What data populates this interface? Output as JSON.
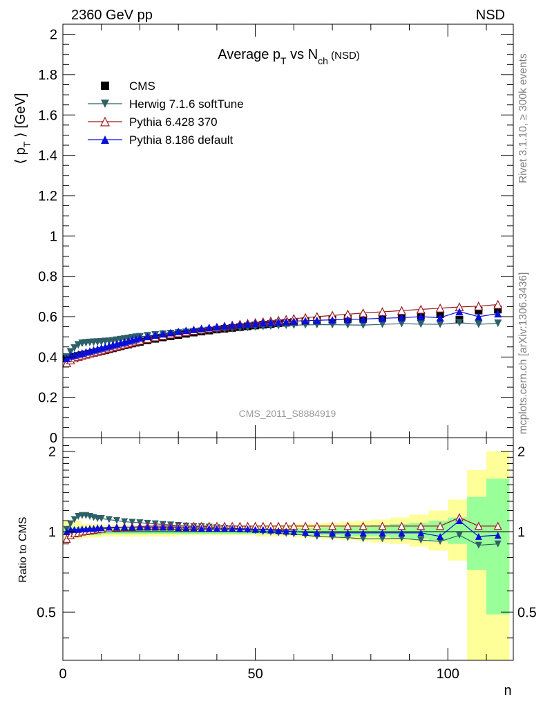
{
  "header": {
    "left": "2360 GeV pp",
    "right": "NSD"
  },
  "side_labels": {
    "rivet": "Rivet 3.1.10, ≥ 300k events",
    "mcplots": "mcplots.cern.ch [arXiv:1306.3436]"
  },
  "chart_data": [
    {
      "type": "scatter",
      "title": {
        "main": "Average p",
        "main_sub": "T",
        "mid": " vs N",
        "mid_sub": "ch",
        "tail": " (NSD)"
      },
      "ylabel": {
        "pre": "⟨ p",
        "sub": "T",
        "post": " ⟩ [GeV]"
      },
      "watermark": "CMS_2011_S8884919",
      "xlim": [
        0,
        117
      ],
      "ylim": [
        0,
        2.05
      ],
      "yticks": [
        {
          "v": 0,
          "label": "0"
        },
        {
          "v": 0.2,
          "label": "0.2"
        },
        {
          "v": 0.4,
          "label": "0.4"
        },
        {
          "v": 0.6,
          "label": "0.6"
        },
        {
          "v": 0.8,
          "label": "0.8"
        },
        {
          "v": 1.0,
          "label": "1"
        },
        {
          "v": 1.2,
          "label": "1.2"
        },
        {
          "v": 1.4,
          "label": "1.4"
        },
        {
          "v": 1.6,
          "label": "1.6"
        },
        {
          "v": 1.8,
          "label": "1.8"
        },
        {
          "v": 2.0,
          "label": "2"
        }
      ],
      "legend_position": "top-left",
      "series": [
        {
          "name": "CMS",
          "color": "#000000",
          "marker": "square",
          "line": false,
          "x": [
            1,
            2,
            3,
            4,
            5,
            6,
            7,
            8,
            9,
            10,
            11,
            12,
            13,
            14,
            15,
            16,
            17,
            18,
            19,
            20,
            22,
            24,
            26,
            28,
            30,
            32,
            34,
            36,
            38,
            40,
            42,
            44,
            46,
            48,
            50,
            52,
            54,
            56,
            58,
            60,
            63,
            66,
            70,
            74,
            78,
            83,
            88,
            93,
            98,
            103,
            108,
            113
          ],
          "y": [
            0.392,
            0.397,
            0.401,
            0.405,
            0.409,
            0.413,
            0.417,
            0.421,
            0.425,
            0.429,
            0.433,
            0.438,
            0.443,
            0.448,
            0.453,
            0.458,
            0.462,
            0.467,
            0.471,
            0.475,
            0.483,
            0.49,
            0.497,
            0.503,
            0.509,
            0.515,
            0.521,
            0.526,
            0.531,
            0.536,
            0.54,
            0.544,
            0.548,
            0.552,
            0.556,
            0.56,
            0.563,
            0.567,
            0.57,
            0.573,
            0.577,
            0.581,
            0.585,
            0.589,
            0.593,
            0.597,
            0.601,
            0.605,
            0.612,
            0.585,
            0.63,
            0.635
          ]
        },
        {
          "name": "Herwig 7.1.6 softTune",
          "color": "#2e6068",
          "marker": "triangle-down",
          "line": true,
          "x": [
            1,
            2,
            3,
            4,
            5,
            6,
            7,
            8,
            9,
            10,
            11,
            12,
            13,
            14,
            15,
            16,
            17,
            18,
            19,
            20,
            22,
            24,
            26,
            28,
            30,
            32,
            34,
            36,
            38,
            40,
            42,
            44,
            46,
            48,
            50,
            52,
            54,
            56,
            58,
            60,
            63,
            66,
            70,
            74,
            78,
            83,
            88,
            93,
            98,
            103,
            108,
            113
          ],
          "y": [
            0.4,
            0.425,
            0.445,
            0.46,
            0.468,
            0.47,
            0.472,
            0.473,
            0.474,
            0.475,
            0.477,
            0.478,
            0.48,
            0.483,
            0.486,
            0.489,
            0.492,
            0.495,
            0.498,
            0.5,
            0.505,
            0.509,
            0.513,
            0.516,
            0.519,
            0.522,
            0.525,
            0.528,
            0.531,
            0.534,
            0.537,
            0.54,
            0.543,
            0.546,
            0.549,
            0.551,
            0.553,
            0.555,
            0.557,
            0.558,
            0.559,
            0.56,
            0.56,
            0.559,
            0.558,
            0.562,
            0.565,
            0.563,
            0.562,
            0.57,
            0.562,
            0.567
          ]
        },
        {
          "name": "Pythia 6.428 370",
          "color": "#9a1c22",
          "marker": "triangle-up-open",
          "line": true,
          "x": [
            1,
            2,
            3,
            4,
            5,
            6,
            7,
            8,
            9,
            10,
            11,
            12,
            13,
            14,
            15,
            16,
            17,
            18,
            19,
            20,
            22,
            24,
            26,
            28,
            30,
            32,
            34,
            36,
            38,
            40,
            42,
            44,
            46,
            48,
            50,
            52,
            54,
            56,
            58,
            60,
            63,
            66,
            70,
            74,
            78,
            83,
            88,
            93,
            98,
            103,
            108,
            113
          ],
          "y": [
            0.37,
            0.385,
            0.395,
            0.402,
            0.408,
            0.413,
            0.418,
            0.423,
            0.428,
            0.433,
            0.438,
            0.443,
            0.448,
            0.453,
            0.458,
            0.463,
            0.468,
            0.473,
            0.478,
            0.483,
            0.491,
            0.499,
            0.506,
            0.513,
            0.519,
            0.525,
            0.531,
            0.537,
            0.542,
            0.547,
            0.552,
            0.557,
            0.562,
            0.566,
            0.57,
            0.574,
            0.578,
            0.582,
            0.586,
            0.59,
            0.595,
            0.6,
            0.606,
            0.612,
            0.618,
            0.624,
            0.63,
            0.636,
            0.642,
            0.648,
            0.652,
            0.66
          ]
        },
        {
          "name": "Pythia 8.186 default",
          "color": "#0a10d8",
          "marker": "triangle-up",
          "line": true,
          "x": [
            1,
            2,
            3,
            4,
            5,
            6,
            7,
            8,
            9,
            10,
            11,
            12,
            13,
            14,
            15,
            16,
            17,
            18,
            19,
            20,
            22,
            24,
            26,
            28,
            30,
            32,
            34,
            36,
            38,
            40,
            42,
            44,
            46,
            48,
            50,
            52,
            54,
            56,
            58,
            60,
            63,
            66,
            70,
            74,
            78,
            83,
            88,
            93,
            98,
            103,
            108,
            113
          ],
          "y": [
            0.393,
            0.405,
            0.41,
            0.415,
            0.42,
            0.425,
            0.43,
            0.435,
            0.44,
            0.445,
            0.45,
            0.455,
            0.46,
            0.465,
            0.47,
            0.475,
            0.48,
            0.485,
            0.49,
            0.495,
            0.502,
            0.509,
            0.515,
            0.521,
            0.527,
            0.532,
            0.537,
            0.542,
            0.546,
            0.55,
            0.554,
            0.558,
            0.561,
            0.564,
            0.567,
            0.57,
            0.572,
            0.574,
            0.576,
            0.578,
            0.58,
            0.582,
            0.584,
            0.586,
            0.588,
            0.592,
            0.595,
            0.6,
            0.595,
            0.625,
            0.6,
            0.615
          ]
        }
      ]
    },
    {
      "type": "scatter",
      "ylabel": "Ratio to CMS",
      "xlabel": "n",
      "xlim": [
        0,
        117
      ],
      "ylim": [
        0.33,
        2.25
      ],
      "log_y": true,
      "reference_line": 1,
      "xticks": [
        {
          "v": 0,
          "label": "0"
        },
        {
          "v": 50,
          "label": "50"
        },
        {
          "v": 100,
          "label": "100"
        }
      ],
      "yticks": [
        {
          "v": 0.5,
          "label": "0.5"
        },
        {
          "v": 1,
          "label": "1"
        },
        {
          "v": 2,
          "label": "2"
        }
      ],
      "bands": {
        "x_edges": [
          0,
          5,
          10,
          20,
          30,
          40,
          50,
          60,
          67,
          72,
          76,
          80,
          85,
          90,
          95,
          100,
          105,
          110,
          116
        ],
        "yellow": [
          [
            0.94,
            1.1
          ],
          [
            0.95,
            1.07
          ],
          [
            0.96,
            1.06
          ],
          [
            0.96,
            1.05
          ],
          [
            0.97,
            1.05
          ],
          [
            0.97,
            1.05
          ],
          [
            0.96,
            1.06
          ],
          [
            0.95,
            1.07
          ],
          [
            0.94,
            1.08
          ],
          [
            0.93,
            1.09
          ],
          [
            0.92,
            1.1
          ],
          [
            0.91,
            1.11
          ],
          [
            0.9,
            1.13
          ],
          [
            0.88,
            1.16
          ],
          [
            0.85,
            1.2
          ],
          [
            0.78,
            1.32
          ],
          [
            0.3,
            1.7
          ],
          [
            0.3,
            2.0
          ]
        ],
        "green": [
          [
            0.97,
            1.04
          ],
          [
            0.97,
            1.03
          ],
          [
            0.98,
            1.03
          ],
          [
            0.98,
            1.03
          ],
          [
            0.98,
            1.02
          ],
          [
            0.98,
            1.02
          ],
          [
            0.98,
            1.03
          ],
          [
            0.97,
            1.03
          ],
          [
            0.97,
            1.04
          ],
          [
            0.96,
            1.05
          ],
          [
            0.96,
            1.05
          ],
          [
            0.96,
            1.06
          ],
          [
            0.95,
            1.07
          ],
          [
            0.94,
            1.08
          ],
          [
            0.92,
            1.1
          ],
          [
            0.9,
            1.13
          ],
          [
            0.72,
            1.35
          ],
          [
            0.49,
            1.58
          ]
        ]
      },
      "series": [
        {
          "name": "Herwig 7.1.6 softTune",
          "color": "#2e6068",
          "marker": "triangle-down",
          "line": true,
          "x": [
            1,
            2,
            3,
            4,
            5,
            6,
            7,
            8,
            9,
            10,
            12,
            14,
            16,
            18,
            20,
            22,
            24,
            26,
            28,
            30,
            32,
            34,
            36,
            38,
            40,
            42,
            44,
            46,
            48,
            50,
            52,
            54,
            56,
            58,
            60,
            63,
            66,
            70,
            74,
            78,
            83,
            88,
            93,
            98,
            103,
            108,
            113
          ],
          "y": [
            1.02,
            1.07,
            1.11,
            1.14,
            1.15,
            1.15,
            1.14,
            1.13,
            1.12,
            1.12,
            1.11,
            1.1,
            1.09,
            1.085,
            1.08,
            1.075,
            1.07,
            1.065,
            1.06,
            1.055,
            1.05,
            1.045,
            1.045,
            1.04,
            1.035,
            1.03,
            1.025,
            1.02,
            1.015,
            1.01,
            1.0,
            0.995,
            0.99,
            0.985,
            0.98,
            0.97,
            0.96,
            0.955,
            0.95,
            0.94,
            0.94,
            0.945,
            0.93,
            0.92,
            0.97,
            0.89,
            0.9
          ]
        },
        {
          "name": "Pythia 6.428 370",
          "color": "#9a1c22",
          "marker": "triangle-up-open",
          "line": true,
          "x": [
            1,
            2,
            3,
            4,
            5,
            6,
            7,
            8,
            9,
            10,
            12,
            14,
            16,
            18,
            20,
            22,
            24,
            26,
            28,
            30,
            32,
            34,
            36,
            38,
            40,
            42,
            44,
            46,
            48,
            50,
            52,
            54,
            56,
            58,
            60,
            63,
            66,
            70,
            74,
            78,
            83,
            88,
            93,
            98,
            103,
            108,
            113
          ],
          "y": [
            0.94,
            0.97,
            0.985,
            0.99,
            1.0,
            1.005,
            1.01,
            1.015,
            1.02,
            1.025,
            1.03,
            1.035,
            1.04,
            1.04,
            1.045,
            1.05,
            1.05,
            1.05,
            1.05,
            1.05,
            1.05,
            1.05,
            1.05,
            1.05,
            1.05,
            1.05,
            1.05,
            1.05,
            1.05,
            1.05,
            1.05,
            1.05,
            1.05,
            1.05,
            1.05,
            1.05,
            1.05,
            1.05,
            1.05,
            1.05,
            1.05,
            1.05,
            1.05,
            1.05,
            1.13,
            1.05,
            1.05
          ]
        },
        {
          "name": "Pythia 8.186 default",
          "color": "#0a10d8",
          "marker": "triangle-up",
          "line": true,
          "x": [
            1,
            2,
            3,
            4,
            5,
            6,
            7,
            8,
            9,
            10,
            12,
            14,
            16,
            18,
            20,
            22,
            24,
            26,
            28,
            30,
            32,
            34,
            36,
            38,
            40,
            42,
            44,
            46,
            48,
            50,
            52,
            54,
            56,
            58,
            60,
            63,
            66,
            70,
            74,
            78,
            83,
            88,
            93,
            98,
            103,
            108,
            113
          ],
          "y": [
            1.0,
            1.02,
            1.02,
            1.02,
            1.025,
            1.025,
            1.03,
            1.03,
            1.035,
            1.035,
            1.04,
            1.04,
            1.04,
            1.04,
            1.04,
            1.04,
            1.04,
            1.04,
            1.04,
            1.035,
            1.035,
            1.035,
            1.03,
            1.03,
            1.03,
            1.03,
            1.03,
            1.025,
            1.025,
            1.02,
            1.02,
            1.015,
            1.01,
            1.005,
            1.0,
            0.995,
            0.99,
            0.99,
            0.99,
            0.99,
            0.99,
            0.99,
            0.99,
            0.96,
            1.1,
            0.96,
            0.97
          ]
        }
      ]
    }
  ]
}
